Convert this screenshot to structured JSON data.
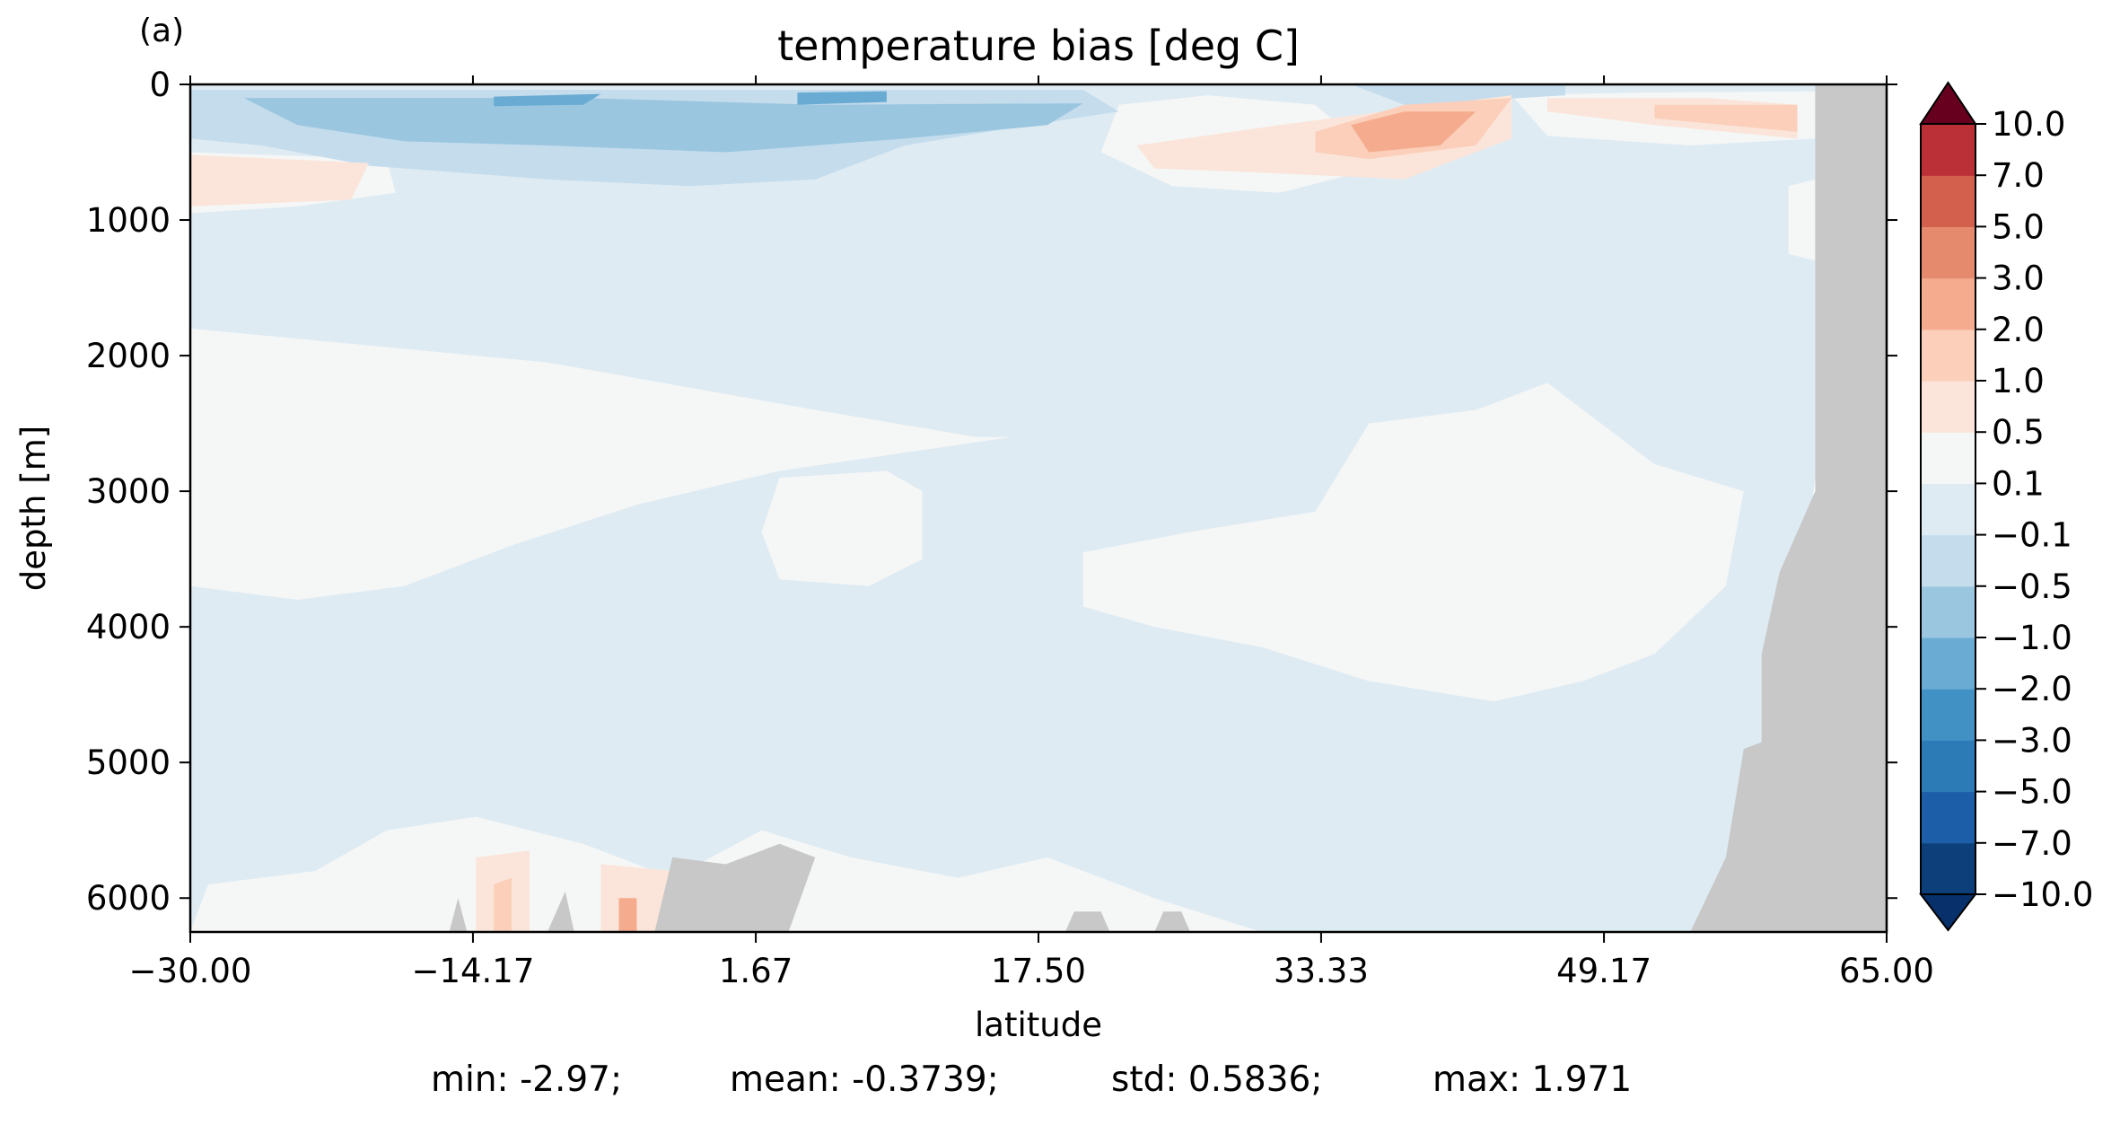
{
  "panel_label": "(a)",
  "chart_data": {
    "type": "heatmap",
    "title": "temperature bias [deg C]",
    "xlabel": "latitude",
    "ylabel": "depth [m]",
    "xlim": [
      -30.0,
      65.0
    ],
    "ylim": [
      6250,
      0
    ],
    "y_inverted": true,
    "x_ticks": [
      -30.0,
      -14.17,
      1.67,
      17.5,
      33.33,
      49.17,
      65.0
    ],
    "x_tick_labels": [
      "−30.00",
      "−14.17",
      "1.67",
      "17.50",
      "33.33",
      "49.17",
      "65.00"
    ],
    "y_ticks": [
      0,
      1000,
      2000,
      3000,
      4000,
      5000,
      6000
    ],
    "y_tick_labels": [
      "0",
      "1000",
      "2000",
      "3000",
      "4000",
      "5000",
      "6000"
    ],
    "colorbar": {
      "levels": [
        -10.0,
        -7.0,
        -5.0,
        -3.0,
        -2.0,
        -1.0,
        -0.5,
        -0.1,
        0.1,
        0.5,
        1.0,
        2.0,
        3.0,
        5.0,
        7.0,
        10.0
      ],
      "tick_labels": [
        "−10.0",
        "−7.0",
        "−5.0",
        "−3.0",
        "−2.0",
        "−1.0",
        "−0.5",
        "−0.1",
        "0.1",
        "0.5",
        "1.0",
        "2.0",
        "3.0",
        "5.0",
        "7.0",
        "10.0"
      ],
      "colors": [
        "#0d3f7a",
        "#1c5ea7",
        "#2c7bb6",
        "#4291c5",
        "#6aabd3",
        "#9ac6e0",
        "#c4dcec",
        "#deebf3",
        "#f5f6f6",
        "#fbe5da",
        "#fbcfba",
        "#f5ac8e",
        "#e68a6e",
        "#d3604d",
        "#bb2f36",
        "#980e24"
      ],
      "under_color": "#08306b",
      "over_color": "#67001f",
      "extend": "both"
    },
    "mask_color": "#c8c8c8",
    "regions": [
      {
        "level": -0.1,
        "poly": [
          [
            -30,
            0
          ],
          [
            61,
            0
          ],
          [
            61,
            2900
          ],
          [
            59,
            5200
          ],
          [
            56,
            6250
          ],
          [
            -30,
            6250
          ]
        ]
      },
      {
        "level": 0.1,
        "poly": [
          [
            -30,
            1800
          ],
          [
            -10,
            2050
          ],
          [
            5,
            2400
          ],
          [
            14,
            2600
          ],
          [
            16,
            2600
          ],
          [
            3,
            2850
          ],
          [
            -5,
            3100
          ],
          [
            -12,
            3400
          ],
          [
            -18,
            3700
          ],
          [
            -24,
            3800
          ],
          [
            -30,
            3700
          ]
        ]
      },
      {
        "level": 0.1,
        "poly": [
          [
            3,
            2900
          ],
          [
            9,
            2850
          ],
          [
            11,
            3000
          ],
          [
            11,
            3500
          ],
          [
            8,
            3700
          ],
          [
            3,
            3650
          ],
          [
            2,
            3300
          ]
        ]
      },
      {
        "level": 0.1,
        "poly": [
          [
            20,
            3450
          ],
          [
            26,
            3300
          ],
          [
            33,
            3150
          ],
          [
            36,
            2500
          ],
          [
            42,
            2400
          ],
          [
            46,
            2200
          ],
          [
            52,
            2800
          ],
          [
            57,
            3000
          ],
          [
            56,
            3700
          ],
          [
            52,
            4200
          ],
          [
            48,
            4400
          ],
          [
            43,
            4550
          ],
          [
            36,
            4400
          ],
          [
            30,
            4150
          ],
          [
            24,
            4000
          ],
          [
            20,
            3850
          ]
        ]
      },
      {
        "level": 0.1,
        "poly": [
          [
            -30,
            6250
          ],
          [
            -29,
            5900
          ],
          [
            -23,
            5800
          ],
          [
            -19,
            5500
          ],
          [
            -14,
            5400
          ],
          [
            -8,
            5600
          ],
          [
            -3,
            5850
          ],
          [
            2,
            5500
          ],
          [
            7,
            5700
          ],
          [
            13,
            5850
          ],
          [
            18,
            5700
          ],
          [
            24,
            6000
          ],
          [
            30,
            6250
          ]
        ]
      },
      {
        "level": 0.1,
        "poly": [
          [
            22,
            150
          ],
          [
            27,
            80
          ],
          [
            33,
            150
          ],
          [
            37,
            600
          ],
          [
            31,
            800
          ],
          [
            25,
            750
          ],
          [
            21,
            500
          ]
        ]
      },
      {
        "level": 0.1,
        "poly": [
          [
            44,
            80
          ],
          [
            51,
            60
          ],
          [
            61,
            50
          ],
          [
            61,
            400
          ],
          [
            54,
            450
          ],
          [
            46,
            380
          ]
        ]
      },
      {
        "level": 0.1,
        "poly": [
          [
            -30,
            500
          ],
          [
            -19,
            550
          ],
          [
            -18.5,
            800
          ],
          [
            -24,
            900
          ],
          [
            -30,
            950
          ]
        ]
      },
      {
        "level": 0.1,
        "poly": [
          [
            59.5,
            750
          ],
          [
            61,
            700
          ],
          [
            61,
            1300
          ],
          [
            59.5,
            1250
          ]
        ]
      },
      {
        "level": -0.5,
        "poly": [
          [
            -30,
            40
          ],
          [
            20,
            40
          ],
          [
            22,
            200
          ],
          [
            17,
            300
          ],
          [
            10,
            450
          ],
          [
            5,
            700
          ],
          [
            -2,
            750
          ],
          [
            -10,
            700
          ],
          [
            -20,
            600
          ],
          [
            -26,
            450
          ],
          [
            -30,
            400
          ]
        ]
      },
      {
        "level": -0.5,
        "poly": [
          [
            35,
            0
          ],
          [
            47,
            0
          ],
          [
            47,
            80
          ],
          [
            38,
            150
          ]
        ]
      },
      {
        "level": -1.0,
        "poly": [
          [
            -27,
            100
          ],
          [
            -8,
            100
          ],
          [
            5,
            150
          ],
          [
            20,
            140
          ],
          [
            18,
            300
          ],
          [
            10,
            400
          ],
          [
            0,
            500
          ],
          [
            -10,
            450
          ],
          [
            -18,
            420
          ],
          [
            -24,
            300
          ]
        ]
      },
      {
        "level": -2.0,
        "poly": [
          [
            -13,
            90
          ],
          [
            -7,
            70
          ],
          [
            -8,
            150
          ],
          [
            -13,
            160
          ]
        ]
      },
      {
        "level": -2.0,
        "poly": [
          [
            4,
            60
          ],
          [
            9,
            50
          ],
          [
            9,
            130
          ],
          [
            4,
            150
          ]
        ]
      },
      {
        "level": 0.5,
        "poly": [
          [
            -30,
            520
          ],
          [
            -20,
            580
          ],
          [
            -21,
            850
          ],
          [
            -30,
            900
          ]
        ]
      },
      {
        "level": 0.5,
        "poly": [
          [
            23,
            450
          ],
          [
            31,
            300
          ],
          [
            38,
            180
          ],
          [
            44,
            80
          ],
          [
            44,
            400
          ],
          [
            38,
            700
          ],
          [
            30,
            650
          ],
          [
            24,
            620
          ]
        ]
      },
      {
        "level": 0.5,
        "poly": [
          [
            46,
            100
          ],
          [
            55,
            100
          ],
          [
            60,
            150
          ],
          [
            60,
            400
          ],
          [
            52,
            300
          ],
          [
            46,
            200
          ]
        ]
      },
      {
        "level": 0.5,
        "poly": [
          [
            -14,
            5700
          ],
          [
            -11,
            5650
          ],
          [
            -11,
            6250
          ],
          [
            -14,
            6250
          ]
        ]
      },
      {
        "level": 0.5,
        "poly": [
          [
            -7,
            5750
          ],
          [
            -3,
            5800
          ],
          [
            -3,
            6250
          ],
          [
            -7,
            6250
          ]
        ]
      },
      {
        "level": 1.0,
        "poly": [
          [
            33,
            350
          ],
          [
            38,
            150
          ],
          [
            44,
            100
          ],
          [
            42,
            450
          ],
          [
            36,
            550
          ],
          [
            33,
            500
          ]
        ]
      },
      {
        "level": 1.0,
        "poly": [
          [
            52,
            150
          ],
          [
            60,
            150
          ],
          [
            60,
            350
          ],
          [
            52,
            250
          ]
        ]
      },
      {
        "level": 1.0,
        "poly": [
          [
            -13,
            5900
          ],
          [
            -12,
            5850
          ],
          [
            -12,
            6250
          ],
          [
            -13,
            6250
          ]
        ]
      },
      {
        "level": 2.0,
        "poly": [
          [
            35,
            300
          ],
          [
            38,
            200
          ],
          [
            42,
            200
          ],
          [
            40,
            450
          ],
          [
            36,
            500
          ]
        ]
      },
      {
        "level": 2.0,
        "poly": [
          [
            -6,
            6000
          ],
          [
            -5,
            6000
          ],
          [
            -5,
            6250
          ],
          [
            -6,
            6250
          ]
        ]
      }
    ],
    "masks": [
      {
        "poly": [
          [
            61,
            0
          ],
          [
            65,
            0
          ],
          [
            65,
            6250
          ],
          [
            54,
            6250
          ],
          [
            56,
            5700
          ],
          [
            57,
            4900
          ],
          [
            58,
            4850
          ],
          [
            58,
            4200
          ],
          [
            59,
            3600
          ],
          [
            60,
            3300
          ],
          [
            61,
            3000
          ]
        ]
      },
      {
        "poly": [
          [
            -4,
            6250
          ],
          [
            -3,
            5700
          ],
          [
            0,
            5750
          ],
          [
            3,
            5600
          ],
          [
            5,
            5700
          ],
          [
            3.5,
            6250
          ]
        ]
      },
      {
        "poly": [
          [
            -10,
            6250
          ],
          [
            -9,
            5950
          ],
          [
            -8.5,
            6250
          ]
        ]
      },
      {
        "poly": [
          [
            -15.5,
            6250
          ],
          [
            -15,
            6000
          ],
          [
            -14.5,
            6250
          ]
        ]
      },
      {
        "poly": [
          [
            19,
            6250
          ],
          [
            19.5,
            6100
          ],
          [
            21,
            6100
          ],
          [
            21.5,
            6250
          ]
        ]
      },
      {
        "poly": [
          [
            24,
            6250
          ],
          [
            24.5,
            6100
          ],
          [
            25.5,
            6100
          ],
          [
            26,
            6250
          ]
        ]
      }
    ],
    "stats": {
      "min": "min: -2.97;",
      "mean": "mean: -0.3739;",
      "std": "std: 0.5836;",
      "max": "max: 1.971"
    }
  }
}
